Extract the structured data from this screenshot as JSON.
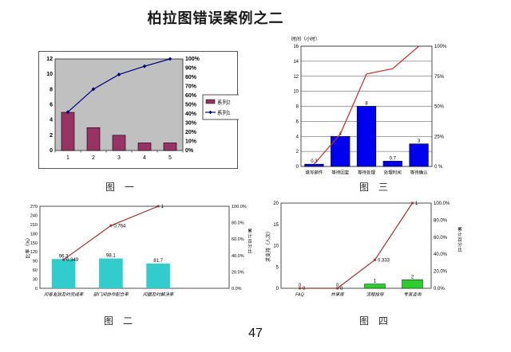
{
  "page": {
    "title": "柏拉图错误案例之二",
    "page_number": "47"
  },
  "chart_data": [
    {
      "id": "c1",
      "type": "pareto (bar+line combo)",
      "caption": "图　一",
      "categories": [
        "1",
        "2",
        "3",
        "4",
        "5"
      ],
      "bars": {
        "name": "系列2",
        "color": "#993366",
        "stroke": "#000000",
        "values": [
          5,
          3,
          2,
          1,
          1
        ]
      },
      "line": {
        "name": "系列1",
        "color": "#000080",
        "marker": "diamond",
        "values": [
          0.42,
          0.67,
          0.83,
          0.92,
          1.0
        ]
      },
      "bar_frac": 0.5,
      "plot_bg": "#c0c0c0",
      "legend": true,
      "left_axis": {
        "min": 0,
        "max": 12,
        "ticks": [
          {
            "v": 0,
            "t": "0"
          },
          {
            "v": 2,
            "t": "2"
          },
          {
            "v": 4,
            "t": "4"
          },
          {
            "v": 6,
            "t": "6"
          },
          {
            "v": 8,
            "t": "8"
          },
          {
            "v": 10,
            "t": "10"
          },
          {
            "v": 12,
            "t": "12"
          }
        ]
      },
      "right_axis": {
        "ticks": [
          {
            "v": 0,
            "t": "0%"
          },
          {
            "v": 0.1,
            "t": "10%"
          },
          {
            "v": 0.2,
            "t": "20%"
          },
          {
            "v": 0.3,
            "t": "30%"
          },
          {
            "v": 0.4,
            "t": "40%"
          },
          {
            "v": 0.5,
            "t": "50%"
          },
          {
            "v": 0.6,
            "t": "60%"
          },
          {
            "v": 0.7,
            "t": "70%"
          },
          {
            "v": 0.8,
            "t": "80%"
          },
          {
            "v": 0.9,
            "t": "90%"
          },
          {
            "v": 1,
            "t": "100%"
          }
        ]
      }
    },
    {
      "id": "c3",
      "type": "pareto (bar+line combo)",
      "caption": "图　三",
      "top_label": "时间（小时）",
      "categories": [
        "填写邮件",
        "等待回复",
        "等待处理",
        "处理时间",
        "等待确认"
      ],
      "bars": {
        "name": "时间",
        "color": "#0000f0",
        "stroke": "#000000",
        "values": [
          0.3,
          4,
          8,
          0.7,
          3
        ],
        "labels": [
          "0.3",
          "4",
          "8",
          "0.7",
          "3"
        ]
      },
      "line": {
        "name": "累计",
        "color": "#cc2929",
        "values": [
          0.019,
          0.269,
          0.769,
          0.813,
          1.0
        ]
      },
      "bar_frac": 0.72,
      "grid": true,
      "left_axis": {
        "min": 0,
        "max": 16,
        "ticks": [
          {
            "v": 0,
            "t": "0"
          },
          {
            "v": 2,
            "t": "2"
          },
          {
            "v": 4,
            "t": "4"
          },
          {
            "v": 6,
            "t": "6"
          },
          {
            "v": 8,
            "t": "8"
          },
          {
            "v": 10,
            "t": "10"
          },
          {
            "v": 12,
            "t": "12"
          },
          {
            "v": 14,
            "t": "14"
          },
          {
            "v": 16,
            "t": "16"
          }
        ]
      },
      "right_axis": {
        "ticks": [
          {
            "v": 0,
            "t": "0 %"
          },
          {
            "v": 0.25,
            "t": "25%"
          },
          {
            "v": 0.5,
            "t": "50%"
          },
          {
            "v": 0.75,
            "t": "75%"
          },
          {
            "v": 1,
            "t": "100%"
          }
        ]
      }
    },
    {
      "id": "c2",
      "type": "pareto (bar+line combo)",
      "caption": "图　二",
      "left_label": "比率（%）",
      "right_label": "累计百分比",
      "categories": [
        "问卷发放及时完成率",
        "部门间协作配合率",
        "问题及时解决率"
      ],
      "cat_italic": true,
      "n_slots": 4,
      "bars": {
        "name": "比率",
        "color": "#33cccc",
        "values": [
          96.3,
          98.1,
          81.7
        ],
        "labels": [
          "96.3",
          "98.1",
          "81.7"
        ]
      },
      "line": {
        "name": "累计",
        "color": "#993333",
        "marker": "square",
        "values": [
          0.349,
          0.764,
          1.0
        ],
        "labels": [
          "0.349",
          "0.764",
          "1"
        ]
      },
      "bar_frac": 0.5,
      "left_axis": {
        "min": 0,
        "max": 270,
        "ticks": [
          {
            "v": 0,
            "t": "0"
          },
          {
            "v": 30,
            "t": "30"
          },
          {
            "v": 60,
            "t": "60"
          },
          {
            "v": 90,
            "t": "90"
          },
          {
            "v": 120,
            "t": "120"
          },
          {
            "v": 150,
            "t": "150"
          },
          {
            "v": 180,
            "t": "180"
          },
          {
            "v": 210,
            "t": "210"
          },
          {
            "v": 240,
            "t": "240"
          },
          {
            "v": 270,
            "t": "270"
          }
        ]
      },
      "right_axis": {
        "ticks": [
          {
            "v": 0,
            "t": "0.0%"
          },
          {
            "v": 0.2,
            "t": "20.0%"
          },
          {
            "v": 0.4,
            "t": "40.0%"
          },
          {
            "v": 0.6,
            "t": "60.0%"
          },
          {
            "v": 0.8,
            "t": "80.0%"
          },
          {
            "v": 1,
            "t": "100.0%"
          }
        ]
      }
    },
    {
      "id": "c4",
      "type": "pareto (bar+line combo)",
      "caption": "图　四",
      "left_label": "求支持（人次）",
      "right_label": "累计百分比",
      "categories": [
        "FAQ",
        "共享库",
        "流程指导",
        "专家咨询"
      ],
      "cat_italic": true,
      "bars": {
        "name": "人次",
        "color": "#2ecc2e",
        "stroke": "#004400",
        "values": [
          0,
          0,
          1,
          2
        ],
        "labels": [
          "0",
          "0",
          "1",
          "2"
        ]
      },
      "line": {
        "name": "累计",
        "color": "#993333",
        "marker": "square",
        "values": [
          0,
          0,
          0.333,
          1.0
        ],
        "labels": [
          "0",
          "0",
          "0.333",
          "1"
        ]
      },
      "bar_frac": 0.55,
      "left_axis": {
        "min": 0,
        "max": 20,
        "ticks": [
          {
            "v": 0,
            "t": "0"
          },
          {
            "v": 5,
            "t": "5"
          },
          {
            "v": 10,
            "t": "10"
          },
          {
            "v": 15,
            "t": "15"
          },
          {
            "v": 20,
            "t": "20"
          }
        ]
      },
      "right_axis": {
        "ticks": [
          {
            "v": 0,
            "t": "0.0%"
          },
          {
            "v": 0.2,
            "t": "20.0%"
          },
          {
            "v": 0.4,
            "t": "40.0%"
          },
          {
            "v": 0.6,
            "t": "60.0%"
          },
          {
            "v": 0.8,
            "t": "80.0%"
          },
          {
            "v": 1,
            "t": "100.0%"
          }
        ]
      }
    }
  ]
}
